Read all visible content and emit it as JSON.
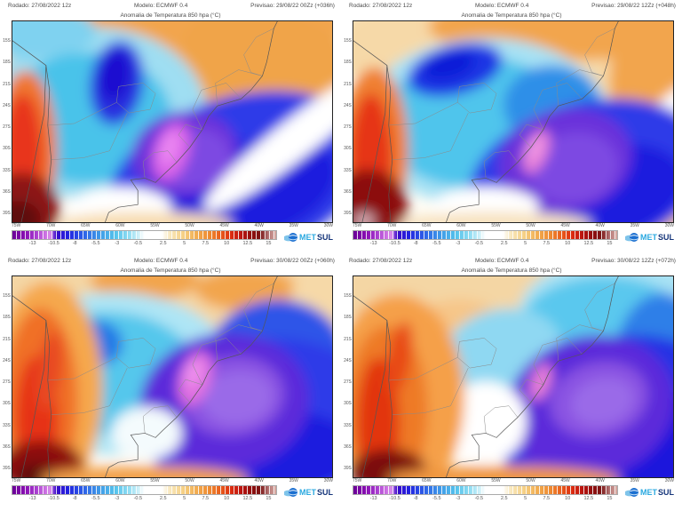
{
  "title": "Anomalia de Temperatura 850 hpa (°C)",
  "logo": {
    "met": "MET",
    "sul": "SUL"
  },
  "axes": {
    "lat": [
      "15S",
      "18S",
      "21S",
      "24S",
      "27S",
      "30S",
      "33S",
      "36S",
      "39S"
    ],
    "lon": [
      "75W",
      "70W",
      "65W",
      "60W",
      "55W",
      "50W",
      "45W",
      "40W",
      "35W",
      "30W"
    ]
  },
  "colorbar": {
    "min": -15.5,
    "max": 16,
    "ticks": [
      -13,
      -10.5,
      -8,
      -5.5,
      -3,
      -0.5,
      2.5,
      5,
      7.5,
      10,
      12.5,
      15
    ],
    "stops": [
      [
        0,
        "#6a0096"
      ],
      [
        0.05,
        "#8a10b4"
      ],
      [
        0.09,
        "#a93fd0"
      ],
      [
        0.12,
        "#c86ae0"
      ],
      [
        0.145,
        "#da8cea"
      ],
      [
        0.165,
        "#3a0bc8"
      ],
      [
        0.21,
        "#2222e0"
      ],
      [
        0.27,
        "#2e62e8"
      ],
      [
        0.33,
        "#3f9ae8"
      ],
      [
        0.39,
        "#55c3ec"
      ],
      [
        0.44,
        "#8edcf2"
      ],
      [
        0.475,
        "#c8eef8"
      ],
      [
        0.5,
        "#ffffff"
      ],
      [
        0.565,
        "#ffffff"
      ],
      [
        0.6,
        "#f8e6b8"
      ],
      [
        0.65,
        "#f5cf82"
      ],
      [
        0.7,
        "#f2ab4e"
      ],
      [
        0.75,
        "#ee8830"
      ],
      [
        0.79,
        "#e85c1c"
      ],
      [
        0.83,
        "#dc2c10"
      ],
      [
        0.87,
        "#b81410"
      ],
      [
        0.91,
        "#8c0e0e"
      ],
      [
        0.94,
        "#7c1616"
      ],
      [
        0.97,
        "#b07070"
      ],
      [
        1,
        "#d8aca4"
      ]
    ]
  },
  "panels": [
    {
      "rodado": "Rodado: 27/08/2022 12z",
      "modelo": "Modelo: ECMWF 0.4",
      "previsto": "Previsao: 29/08/22 00Zz (+036h)",
      "field": [
        [
          "#f6d9a8",
          190,
          22,
          235,
          70,
          0
        ],
        [
          "#f2a54e",
          195,
          4,
          185,
          42,
          0
        ],
        [
          "#f0a449",
          310,
          68,
          125,
          72,
          25
        ],
        [
          "#9fdef2",
          95,
          105,
          125,
          98,
          0
        ],
        [
          "#49c3ea",
          85,
          110,
          95,
          75,
          0
        ],
        [
          "#7fd2f0",
          25,
          12,
          70,
          30,
          0
        ],
        [
          "#2a30e0",
          118,
          70,
          30,
          48,
          8
        ],
        [
          "#1a10d0",
          116,
          62,
          18,
          30,
          8
        ],
        [
          "#2e3be8",
          255,
          178,
          152,
          92,
          -18
        ],
        [
          "#1d1ade",
          275,
          190,
          95,
          55,
          -18
        ],
        [
          "#6c33da",
          195,
          150,
          60,
          48,
          -10
        ],
        [
          "#7d49e2",
          205,
          156,
          42,
          34,
          -10
        ],
        [
          "#d964e8",
          180,
          148,
          20,
          34,
          18
        ],
        [
          "#ea86f2",
          178,
          144,
          10,
          20,
          18
        ],
        [
          "#ffffff",
          322,
          132,
          132,
          22,
          -38
        ],
        [
          "#f07830",
          15,
          148,
          35,
          92,
          0
        ],
        [
          "#e8341c",
          12,
          152,
          22,
          70,
          0
        ],
        [
          "#8c1212",
          10,
          212,
          44,
          40,
          0
        ],
        [
          "#5e0a0a",
          6,
          224,
          26,
          20,
          0
        ],
        [
          "#ffffff",
          122,
          212,
          58,
          24,
          0
        ],
        [
          "#f7dcb0",
          150,
          230,
          100,
          14,
          0
        ]
      ]
    },
    {
      "rodado": "Rodado: 27/08/2022 12z",
      "modelo": "Modelo: ECMWF 0.4",
      "previsto": "Previsao: 29/08/22 12Zz (+048h)",
      "field": [
        [
          "#f6d9a8",
          210,
          28,
          235,
          78,
          0
        ],
        [
          "#f2a54e",
          250,
          6,
          165,
          38,
          0
        ],
        [
          "#f2a54e",
          354,
          55,
          62,
          85,
          15
        ],
        [
          "#ffffff",
          340,
          150,
          112,
          36,
          -50
        ],
        [
          "#f6c689",
          358,
          195,
          42,
          60,
          0
        ],
        [
          "#a8e2f4",
          150,
          115,
          142,
          96,
          0
        ],
        [
          "#4fc5ec",
          140,
          115,
          110,
          75,
          0
        ],
        [
          "#2e8fe8",
          225,
          95,
          55,
          45,
          0
        ],
        [
          "#1c34e4",
          115,
          55,
          55,
          28,
          -15
        ],
        [
          "#101fd8",
          108,
          50,
          30,
          16,
          -15
        ],
        [
          "#2e3be8",
          265,
          178,
          138,
          86,
          -15
        ],
        [
          "#1d1ade",
          290,
          194,
          86,
          52,
          -15
        ],
        [
          "#6a31da",
          240,
          158,
          76,
          58,
          -12
        ],
        [
          "#7d49e2",
          250,
          166,
          50,
          40,
          -12
        ],
        [
          "#e87fd8",
          207,
          148,
          13,
          26,
          22
        ],
        [
          "#f09ae6",
          205,
          144,
          7,
          14,
          22
        ],
        [
          "#f08030",
          24,
          148,
          38,
          96,
          0
        ],
        [
          "#e63419",
          20,
          158,
          24,
          76,
          0
        ],
        [
          "#8c0f0f",
          16,
          210,
          46,
          42,
          0
        ],
        [
          "#d8b0b8",
          12,
          226,
          12,
          9,
          0
        ],
        [
          "#ffffff",
          150,
          210,
          60,
          22,
          0
        ],
        [
          "#f7e2c0",
          160,
          230,
          110,
          14,
          0
        ]
      ]
    },
    {
      "rodado": "Rodado: 27/08/2022 12z",
      "modelo": "Modelo: ECMWF 0.4",
      "previsto": "Previsao: 30/08/22 00Zz (+060h)",
      "field": [
        [
          "#f4d6a4",
          190,
          18,
          225,
          58,
          0
        ],
        [
          "#f2a54e",
          150,
          5,
          62,
          22,
          0
        ],
        [
          "#f2a54e",
          265,
          15,
          58,
          24,
          0
        ],
        [
          "#f6d9a8",
          356,
          38,
          42,
          62,
          0
        ],
        [
          "#aee5f5",
          115,
          110,
          138,
          92,
          0
        ],
        [
          "#55c7ec",
          105,
          110,
          105,
          70,
          0
        ],
        [
          "#2079e6",
          95,
          76,
          30,
          26,
          0
        ],
        [
          "#2079e6",
          72,
          125,
          18,
          40,
          0
        ],
        [
          "#2e55e8",
          300,
          92,
          78,
          66,
          0
        ],
        [
          "#2e3be8",
          285,
          168,
          132,
          96,
          -10
        ],
        [
          "#1d1ade",
          300,
          198,
          92,
          46,
          0
        ],
        [
          "#5c2cda",
          240,
          143,
          96,
          78,
          -8
        ],
        [
          "#8a52e2",
          250,
          136,
          58,
          45,
          -8
        ],
        [
          "#9a6ae8",
          255,
          138,
          40,
          30,
          -8
        ],
        [
          "#e06fe0",
          207,
          116,
          18,
          32,
          18
        ],
        [
          "#ee92ee",
          205,
          110,
          9,
          16,
          18
        ],
        [
          "#f4fbfd",
          152,
          178,
          40,
          30,
          0
        ],
        [
          "#f5a84e",
          40,
          128,
          62,
          122,
          0
        ],
        [
          "#f07028",
          32,
          142,
          42,
          106,
          0
        ],
        [
          "#e63014",
          28,
          162,
          24,
          72,
          0
        ],
        [
          "#e84a20",
          42,
          108,
          14,
          46,
          8
        ],
        [
          "#8c0f0f",
          33,
          216,
          48,
          30,
          0
        ],
        [
          "#600a0a",
          26,
          226,
          22,
          14,
          0
        ],
        [
          "#f2a04a",
          150,
          230,
          118,
          15,
          0
        ]
      ]
    },
    {
      "rodado": "Rodado: 27/08/2022 12z",
      "modelo": "Modelo: ECMWF 0.4",
      "previsto": "Previsao: 30/08/22 12Zz (+072h)",
      "field": [
        [
          "#f4d6a4",
          110,
          18,
          145,
          46,
          0
        ],
        [
          "#f6c689",
          120,
          58,
          52,
          32,
          0
        ],
        [
          "#a8e2f4",
          300,
          40,
          112,
          62,
          0
        ],
        [
          "#5ac8ee",
          285,
          55,
          95,
          55,
          0
        ],
        [
          "#2e7fe8",
          350,
          105,
          56,
          86,
          0
        ],
        [
          "#bfeaf8",
          150,
          110,
          72,
          56,
          0
        ],
        [
          "#8fd8f2",
          170,
          85,
          66,
          48,
          -10
        ],
        [
          "#2830e4",
          300,
          168,
          136,
          100,
          -12
        ],
        [
          "#1a18dc",
          320,
          190,
          86,
          56,
          -12
        ],
        [
          "#5c2cda",
          268,
          148,
          96,
          80,
          -15
        ],
        [
          "#8a52e2",
          278,
          140,
          56,
          42,
          -15
        ],
        [
          "#9a6ae8",
          282,
          142,
          36,
          26,
          -15
        ],
        [
          "#e87fd8",
          212,
          120,
          11,
          22,
          20
        ],
        [
          "#ffffff",
          150,
          165,
          46,
          46,
          0
        ],
        [
          "#f5a04a",
          50,
          138,
          76,
          118,
          0
        ],
        [
          "#ee7a28",
          38,
          152,
          46,
          96,
          0
        ],
        [
          "#e2350f",
          28,
          168,
          24,
          76,
          0
        ],
        [
          "#e84a18",
          52,
          93,
          13,
          42,
          10
        ],
        [
          "#7c0c0c",
          40,
          222,
          44,
          26,
          0
        ],
        [
          "#f0973f",
          170,
          230,
          132,
          15,
          0
        ]
      ]
    }
  ]
}
